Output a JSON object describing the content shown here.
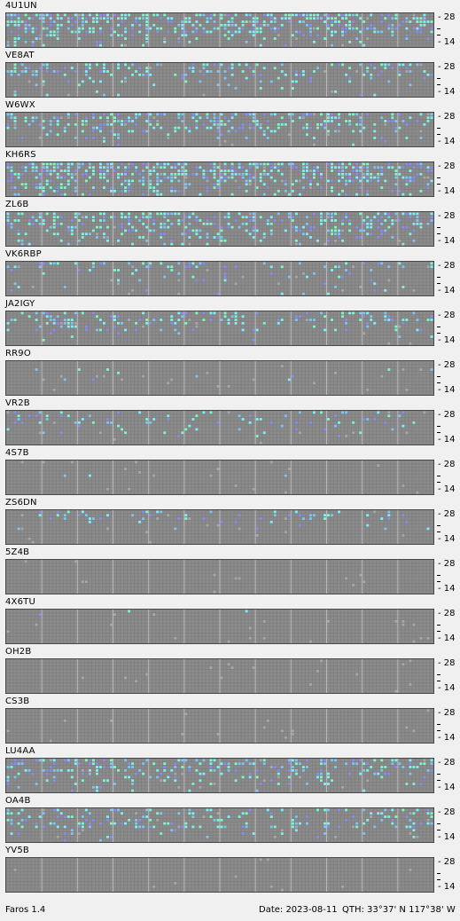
{
  "axis_labels": {
    "top": "28",
    "bottom": "14"
  },
  "colors": {
    "background": "#f0f0f0",
    "grid": "#808080",
    "cell_idle": "#8c8c8c",
    "cell_light": "#a8a8a8",
    "cyan": "#7ef0f8",
    "mint": "#7ef8c8",
    "sky": "#80c4f8",
    "violet": "#8a8cf4"
  },
  "status_bar": {
    "app": "Faros 1.4",
    "date": "Date: 2023-08-11",
    "qth": "QTH: 33°37' N  117°38' W"
  },
  "stations": [
    {
      "callsign": "4U1UN",
      "activity": [
        0.15,
        0.25,
        0.85,
        0.7,
        0.95
      ]
    },
    {
      "callsign": "VE8AT",
      "activity": [
        0.05,
        0.1,
        0.2,
        0.5,
        0.45
      ]
    },
    {
      "callsign": "W6WX",
      "activity": [
        0.05,
        0.15,
        0.35,
        0.6,
        0.6
      ]
    },
    {
      "callsign": "KH6RS",
      "activity": [
        0.3,
        0.45,
        0.7,
        0.85,
        0.95
      ]
    },
    {
      "callsign": "ZL6B",
      "activity": [
        0.2,
        0.35,
        0.55,
        0.7,
        0.75
      ]
    },
    {
      "callsign": "VK6RBP",
      "activity": [
        0.02,
        0.05,
        0.1,
        0.2,
        0.35
      ]
    },
    {
      "callsign": "JA2IGY",
      "activity": [
        0.02,
        0.05,
        0.2,
        0.45,
        0.45
      ]
    },
    {
      "callsign": "RR9O",
      "activity": [
        0.0,
        0.0,
        0.02,
        0.03,
        0.0
      ]
    },
    {
      "callsign": "VR2B",
      "activity": [
        0.0,
        0.05,
        0.1,
        0.3,
        0.2
      ]
    },
    {
      "callsign": "4S7B",
      "activity": [
        0.0,
        0.0,
        0.02,
        0.0,
        0.0
      ]
    },
    {
      "callsign": "ZS6DN",
      "activity": [
        0.0,
        0.0,
        0.05,
        0.15,
        0.25
      ]
    },
    {
      "callsign": "5Z4B",
      "activity": [
        0.0,
        0.0,
        0.0,
        0.0,
        0.0
      ]
    },
    {
      "callsign": "4X6TU",
      "activity": [
        0.0,
        0.0,
        0.0,
        0.0,
        0.02
      ]
    },
    {
      "callsign": "OH2B",
      "activity": [
        0.0,
        0.0,
        0.0,
        0.0,
        0.0
      ]
    },
    {
      "callsign": "CS3B",
      "activity": [
        0.0,
        0.0,
        0.0,
        0.0,
        0.0
      ]
    },
    {
      "callsign": "LU4AA",
      "activity": [
        0.1,
        0.2,
        0.3,
        0.55,
        0.6
      ]
    },
    {
      "callsign": "OA4B",
      "activity": [
        0.05,
        0.2,
        0.45,
        0.35,
        0.3
      ]
    },
    {
      "callsign": "YV5B",
      "activity": [
        0.0,
        0.0,
        0.0,
        0.0,
        0.0
      ]
    }
  ]
}
